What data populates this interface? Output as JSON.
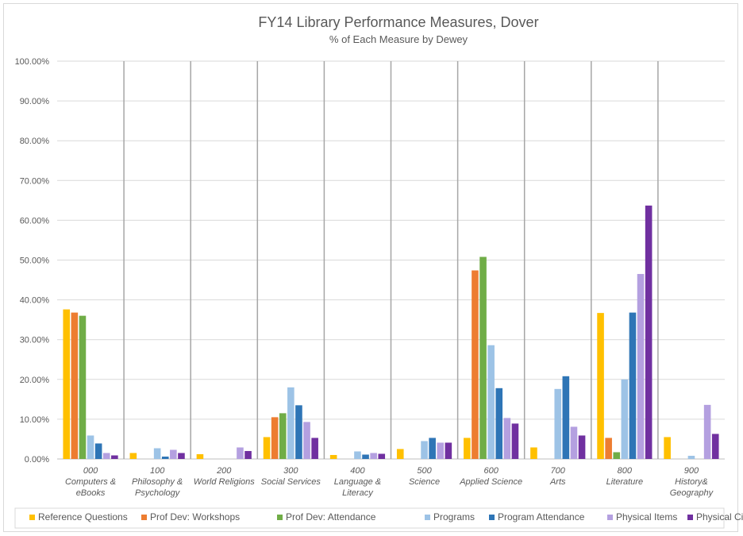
{
  "chart_data": {
    "type": "bar",
    "title": "FY14 Library Performance Measures, Dover",
    "subtitle": "% of Each Measure by Dewey",
    "categories": [
      [
        "000",
        "Computers &",
        "eBooks"
      ],
      [
        "100",
        "Philosophy &",
        "Psychology"
      ],
      [
        "200",
        "World Religions"
      ],
      [
        "300",
        "Social Services"
      ],
      [
        "400",
        "Language &",
        "Literacy"
      ],
      [
        "500",
        "Science"
      ],
      [
        "600",
        "Applied Science"
      ],
      [
        "700",
        "Arts"
      ],
      [
        "800",
        "Literature"
      ],
      [
        "900",
        "History&",
        "Geography"
      ]
    ],
    "ylim": [
      0,
      100
    ],
    "yticks": [
      "0.00%",
      "10.00%",
      "20.00%",
      "30.00%",
      "40.00%",
      "50.00%",
      "60.00%",
      "70.00%",
      "80.00%",
      "90.00%",
      "100.00%"
    ],
    "grid": true,
    "legend_position": "bottom",
    "series": [
      {
        "name": "Reference Questions",
        "color": "#FFC000",
        "values": [
          37.6,
          1.5,
          1.2,
          5.5,
          1.0,
          2.5,
          5.3,
          2.9,
          36.7,
          5.5
        ]
      },
      {
        "name": "Prof Dev: Workshops",
        "color": "#ED7D31",
        "values": [
          36.8,
          0,
          0,
          10.5,
          0,
          0,
          47.4,
          0,
          5.3,
          0
        ]
      },
      {
        "name": "Prof Dev: Attendance",
        "color": "#70AD47",
        "values": [
          36.0,
          0,
          0,
          11.5,
          0,
          0,
          50.8,
          0,
          1.7,
          0
        ]
      },
      {
        "name": "Programs",
        "color": "#9DC3E6",
        "values": [
          5.9,
          2.7,
          0,
          18.0,
          1.9,
          4.5,
          28.6,
          17.6,
          20.0,
          0.8
        ]
      },
      {
        "name": "Program Attendance",
        "color": "#2E75B6",
        "values": [
          3.9,
          0.6,
          0,
          13.5,
          1.1,
          5.3,
          17.8,
          20.8,
          36.8,
          0
        ]
      },
      {
        "name": "Physical Items",
        "color": "#B4A0E0",
        "values": [
          1.5,
          2.3,
          2.9,
          9.3,
          1.5,
          4.1,
          10.3,
          8.1,
          46.5,
          13.6
        ]
      },
      {
        "name": "Physical Circulation",
        "color": "#7030A0",
        "values": [
          0.9,
          1.5,
          2.0,
          5.3,
          1.3,
          4.1,
          8.9,
          5.9,
          63.7,
          6.3
        ]
      }
    ]
  }
}
